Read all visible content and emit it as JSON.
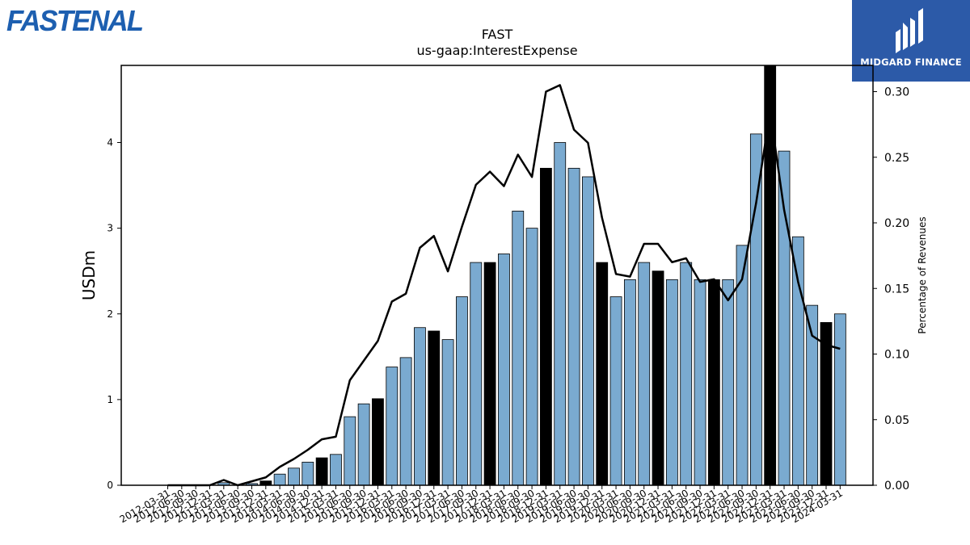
{
  "logos": {
    "left_text": "FASTENAL",
    "left_color": "#1d5fb0",
    "right_text": "MIDGARD FINANCE",
    "right_bg": "#2c5aa8"
  },
  "chart_data": {
    "type": "bar",
    "title": "FAST",
    "subtitle": "us-gaap:InterestExpense",
    "ylabel": "USDm",
    "y2label": "Percentage of Revenues",
    "ylim": [
      0,
      4.9
    ],
    "y2lim": [
      0,
      0.32
    ],
    "yticks": [
      0,
      1,
      2,
      3,
      4
    ],
    "y2ticks": [
      0.0,
      0.05,
      0.1,
      0.15,
      0.2,
      0.25,
      0.3
    ],
    "grid": false,
    "colors": {
      "bar": "#7aaad0",
      "bar_highlight": "#000000",
      "line": "#000000"
    },
    "categories": [
      "2012-03-31",
      "2012-06-30",
      "2012-09-30",
      "2012-12-31",
      "2013-03-31",
      "2013-06-30",
      "2013-09-30",
      "2013-12-31",
      "2014-03-31",
      "2014-06-30",
      "2014-09-30",
      "2014-12-31",
      "2015-03-31",
      "2015-06-30",
      "2015-09-30",
      "2015-12-31",
      "2016-03-31",
      "2016-06-30",
      "2016-09-30",
      "2016-12-31",
      "2017-03-31",
      "2017-06-30",
      "2017-09-30",
      "2017-12-31",
      "2018-03-31",
      "2018-06-30",
      "2018-09-30",
      "2018-12-31",
      "2019-03-31",
      "2019-06-30",
      "2019-09-30",
      "2019-12-31",
      "2020-03-31",
      "2020-06-30",
      "2020-09-30",
      "2020-12-31",
      "2021-03-31",
      "2021-06-30",
      "2021-09-30",
      "2021-12-31",
      "2022-03-31",
      "2022-06-30",
      "2022-09-30",
      "2022-12-31",
      "2023-03-31",
      "2023-06-30",
      "2023-09-30",
      "2023-12-31",
      "2024-03-31"
    ],
    "highlight_quarter_end": "12-31",
    "series": [
      {
        "kind": "bar",
        "axis": "left",
        "values": [
          0,
          0,
          0,
          0,
          0.03,
          0,
          0.02,
          0.05,
          0.13,
          0.2,
          0.27,
          0.32,
          0.36,
          0.8,
          0.95,
          1.01,
          1.38,
          1.49,
          1.84,
          1.8,
          1.7,
          2.2,
          2.6,
          2.6,
          2.7,
          3.2,
          3.0,
          3.7,
          4.0,
          3.7,
          3.6,
          2.6,
          2.2,
          2.4,
          2.6,
          2.5,
          2.4,
          2.6,
          2.4,
          2.4,
          2.4,
          2.8,
          4.1,
          4.9,
          3.9,
          2.9,
          2.1,
          1.9,
          2.0
        ]
      },
      {
        "kind": "line",
        "axis": "right",
        "values": [
          0,
          0,
          0,
          0,
          0.004,
          0,
          0.003,
          0.006,
          0.014,
          0.02,
          0.027,
          0.035,
          0.037,
          0.08,
          0.095,
          0.11,
          0.14,
          0.146,
          0.181,
          0.19,
          0.163,
          0.197,
          0.229,
          0.239,
          0.228,
          0.252,
          0.235,
          0.3,
          0.305,
          0.271,
          0.261,
          0.204,
          0.161,
          0.159,
          0.184,
          0.184,
          0.17,
          0.173,
          0.155,
          0.157,
          0.141,
          0.157,
          0.215,
          0.285,
          0.21,
          0.155,
          0.114,
          0.107,
          0.104
        ]
      }
    ]
  }
}
